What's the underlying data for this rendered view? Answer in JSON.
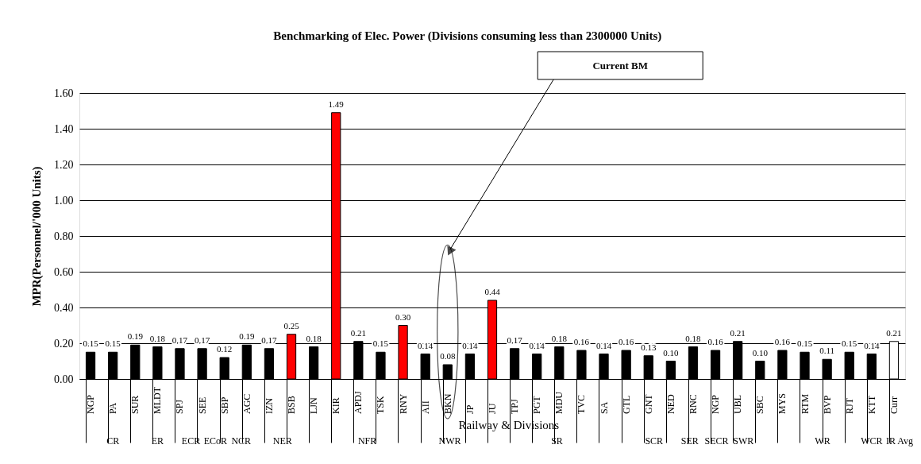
{
  "chart_data": {
    "type": "bar",
    "title": "Benchmarking of Elec. Power (Divisions consuming less than 2300000 Units)",
    "xlabel": "Railway & Divisions",
    "ylabel": "MPR(Personnel/'000 Units)",
    "categories": [
      "NGP",
      "PA",
      "SUR",
      "MLDT",
      "SPJ",
      "SEE",
      "SBP",
      "AGC",
      "IZN",
      "BSB",
      "LJN",
      "KIR",
      "APDJ",
      "TSK",
      "RNY",
      "AII",
      "BKN",
      "JP",
      "JU",
      "TPJ",
      "PGT",
      "MDU",
      "TVC",
      "SA",
      "GTL",
      "GNT",
      "NED",
      "RNC",
      "NGP",
      "UBL",
      "SBC",
      "MYS",
      "RTM",
      "BVP",
      "RJT",
      "KTT",
      "Curr"
    ],
    "values": [
      0.15,
      0.15,
      0.19,
      0.18,
      0.17,
      0.17,
      0.12,
      0.19,
      0.17,
      0.25,
      0.18,
      1.49,
      0.21,
      0.15,
      0.3,
      0.14,
      0.08,
      0.14,
      0.44,
      0.17,
      0.14,
      0.18,
      0.16,
      0.14,
      0.16,
      0.13,
      0.1,
      0.18,
      0.16,
      0.21,
      0.1,
      0.16,
      0.15,
      0.11,
      0.15,
      0.14,
      0.21
    ],
    "colors": [
      "#000000",
      "#000000",
      "#000000",
      "#000000",
      "#000000",
      "#000000",
      "#000000",
      "#000000",
      "#000000",
      "#ff0000",
      "#000000",
      "#ff0000",
      "#000000",
      "#000000",
      "#ff0000",
      "#000000",
      "#000000",
      "#000000",
      "#ff0000",
      "#000000",
      "#000000",
      "#000000",
      "#000000",
      "#000000",
      "#000000",
      "#000000",
      "#000000",
      "#000000",
      "#000000",
      "#000000",
      "#000000",
      "#000000",
      "#000000",
      "#000000",
      "#000000",
      "#000000",
      "#ffffff"
    ],
    "value_labels": [
      "0.15",
      "0.15",
      "0.19",
      "0.18",
      "0.17",
      "0.17",
      "0.12",
      "0.19",
      "0.17",
      "0.25",
      "0.18",
      "1.49",
      "0.21",
      "0.15",
      "0.30",
      "0.14",
      "0.08",
      "0.14",
      "0.44",
      "0.17",
      "0.14",
      "0.18",
      "0.16",
      "0.14",
      "0.16",
      "0.13",
      "0.10",
      "0.18",
      "0.16",
      "0.21",
      "0.10",
      "0.16",
      "0.15",
      "0.11",
      "0.15",
      "0.14",
      "0.21"
    ],
    "ylim": [
      0,
      1.6
    ],
    "yticks": [
      {
        "value": 0,
        "label": "0.00"
      },
      {
        "value": 0.2,
        "label": "0.20"
      },
      {
        "value": 0.4,
        "label": "0.40"
      },
      {
        "value": 0.6,
        "label": "0.60"
      },
      {
        "value": 0.8,
        "label": "0.80"
      },
      {
        "value": 1.0,
        "label": "1.00"
      },
      {
        "value": 1.2,
        "label": "1.20"
      },
      {
        "value": 1.4,
        "label": "1.40"
      },
      {
        "value": 1.6,
        "label": "1.60"
      }
    ],
    "grid": "y",
    "annotations": [
      "Current BM",
      "CR",
      "ER",
      "ECR",
      "ECoR",
      "NCR",
      "NER",
      "NFR",
      "NWR",
      "SR",
      "SCR",
      "SER",
      "SECR",
      "SWR",
      "WR",
      "WCR",
      "IR Avg"
    ]
  }
}
